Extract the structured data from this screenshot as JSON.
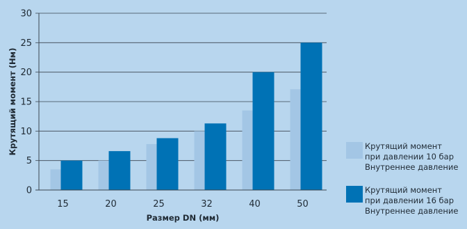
{
  "chart_data": {
    "type": "bar",
    "categories": [
      "15",
      "20",
      "25",
      "32",
      "40",
      "50"
    ],
    "series": [
      {
        "name": "Крутящий момент при давлении 10 бар Внутреннее давление",
        "values": [
          3.5,
          5.0,
          7.8,
          10.0,
          13.5,
          17.1
        ],
        "color": "#a3c6e5"
      },
      {
        "name": "Крутящий момент при давлении 16 бар Внутреннее давление",
        "values": [
          5.0,
          6.6,
          8.8,
          11.3,
          20.0,
          25.0
        ],
        "color": "#0072b5"
      }
    ],
    "xlabel": "Размер DN (мм)",
    "ylabel": "Крутящий момент (Нм)",
    "ylim": [
      0,
      30
    ],
    "yticks": [
      0,
      5,
      10,
      15,
      20,
      25,
      30
    ],
    "grid": true,
    "legend_position": "right"
  },
  "legend": {
    "items": [
      {
        "lines": [
          "Крутящий момент",
          "при давлении 10 бар",
          "Внутреннее давление"
        ],
        "color": "#a3c6e5"
      },
      {
        "lines": [
          "Крутящий момент",
          "при давлении 16 бар",
          "Внутреннее давление"
        ],
        "color": "#0072b5"
      }
    ]
  }
}
